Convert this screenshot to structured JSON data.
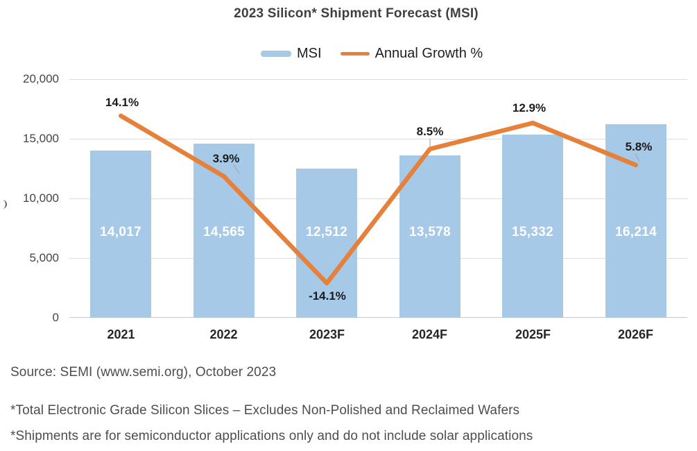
{
  "chart_data": {
    "type": "combo_bar_line",
    "title": "2023 Silicon* Shipment Forecast (MSI)",
    "categories": [
      "2021",
      "2022",
      "2023F",
      "2024F",
      "2025F",
      "2026F"
    ],
    "series": [
      {
        "name": "MSI",
        "type": "bar",
        "color": "#a6c9e8",
        "values": [
          14017,
          14565,
          12512,
          13578,
          15332,
          16214
        ],
        "display_values": [
          "14,017",
          "14,565",
          "12,512",
          "13,578",
          "15,332",
          "16,214"
        ]
      },
      {
        "name": "Annual Growth %",
        "type": "line",
        "color": "#e5813a",
        "values": [
          14.1,
          3.9,
          -14.1,
          8.5,
          12.9,
          5.8
        ],
        "display_values": [
          "14.1%",
          "3.9%",
          "-14.1%",
          "8.5%",
          "12.9%",
          "5.8%"
        ]
      }
    ],
    "y_axis": {
      "tick_labels": [
        "20,000",
        "15,000",
        "10,000",
        "5,000",
        "0"
      ],
      "range": [
        0,
        20000
      ],
      "gridlines": true
    },
    "legend_position": "top"
  },
  "footer": {
    "source": "Source: SEMI (www.semi.org), October 2023",
    "footnote1": "*Total Electronic Grade Silicon Slices – Excludes Non-Polished and Reclaimed Wafers",
    "footnote2": "*Shipments are for semiconductor applications only and do not include solar applications"
  },
  "colors": {
    "bar": "#a6c9e8",
    "line": "#e5813a",
    "grid": "#dcdcdc",
    "title_text": "#3f3f3f",
    "axis_text": "#454545",
    "category_text": "#262626",
    "pct_label_text": "#1b1b1b",
    "bar_label_text": "#ffffff",
    "footer_text": "#4d4d4d"
  }
}
